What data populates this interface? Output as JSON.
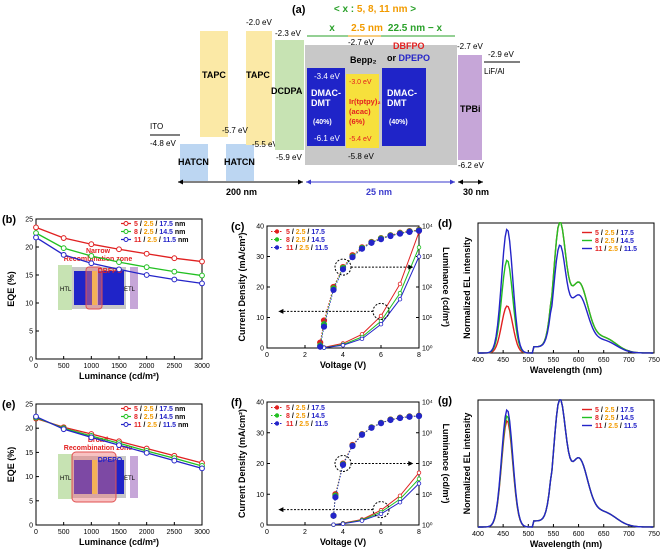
{
  "panel_a": {
    "label": "(a)",
    "thickness_note": {
      "open": "< x : ",
      "values": "5, 8, 11 nm",
      "close": " >"
    },
    "segments": {
      "x": "x",
      "mid": "2.5 nm",
      "right": "22.5 nm − x"
    },
    "layers": [
      {
        "name": "TAPC",
        "lumo": "-2.0 eV",
        "homo": "-5.7 eV",
        "color": "#fbe9a6"
      },
      {
        "name": "TAPC",
        "lumo": "",
        "homo": "-5.5 eV",
        "color": "#fbe9a6"
      },
      {
        "name": "DCDPA",
        "lumo": "-2.3 eV",
        "homo": "-5.9 eV",
        "color": "#c7e3b3"
      },
      {
        "name": "DMAC-\nDMT",
        "sub": "(40%)",
        "lumo": "-3.4 eV",
        "homo": "-6.1 eV",
        "color": "#1f24c8"
      },
      {
        "name": "Bepp₂",
        "lumo": "-2.7 eV",
        "homo": "-5.8 eV",
        "color": "#c8c8c8"
      },
      {
        "name": "Ir(tptpy)₂\n(acac)\n(6%)",
        "lumo": "-3.0 eV",
        "homo": "-5.4 eV",
        "color": "#f7e03c"
      },
      {
        "name": "DMAC-\nDMT",
        "sub": "(40%)",
        "lumo": "",
        "homo": "",
        "color": "#1f24c8"
      },
      {
        "name": "TPBi",
        "lumo": "-2.7 eV",
        "homo": "-6.2 eV",
        "color": "#c6a6d8"
      }
    ],
    "ito": {
      "name": "ITO",
      "wf": "-4.8 eV"
    },
    "hatcn": [
      "HATCN",
      "HATCN"
    ],
    "host_choice": {
      "a": "DBFPO",
      "or": "or ",
      "b": "DPEPO"
    },
    "cathode": {
      "name": "LiF/Al",
      "wf": "-2.9 eV"
    },
    "spans": {
      "left": "200 nm",
      "mid": "25 nm",
      "right": "30 nm"
    }
  },
  "legend": [
    {
      "a": "5",
      "b": "2.5",
      "c": "17.5",
      "unit": " nm"
    },
    {
      "a": "8",
      "b": "2.5",
      "c": "14.5",
      "unit": " nm"
    },
    {
      "a": "11",
      "b": "2.5",
      "c": "11.5",
      "unit": " nm"
    }
  ],
  "legend_short": [
    {
      "a": "5",
      "b": "2.5",
      "c": "17.5"
    },
    {
      "a": "8",
      "b": "2.5",
      "c": "14.5"
    },
    {
      "a": "11",
      "b": "2.5",
      "c": "11.5"
    }
  ],
  "series_colors": [
    "#e02020",
    "#22c022",
    "#2424c8"
  ],
  "insets": {
    "narrow": {
      "title": "Narrow\nRecombination zone",
      "host": "DBFPO",
      "htl": "HTL",
      "etl": "ETL"
    },
    "broad": {
      "title": "Broad\nRecombination zone",
      "host": "DPEPO",
      "htl": "HTL",
      "etl": "ETL"
    }
  },
  "chart_data": [
    {
      "id": "b",
      "label": "(b)",
      "type": "line",
      "xlabel": "Luminance (cd/m²)",
      "ylabel": "EQE (%)",
      "xlim": [
        0,
        3000
      ],
      "ylim": [
        0,
        25
      ],
      "xticks": [
        0,
        500,
        1000,
        1500,
        2000,
        2500,
        3000
      ],
      "yticks": [
        0,
        5,
        10,
        15,
        20,
        25
      ],
      "x": [
        0,
        500,
        1000,
        1500,
        2000,
        2500,
        3000
      ],
      "series": [
        {
          "name": "5 / 2.5 / 17.5 nm",
          "values": [
            23.5,
            21.6,
            20.5,
            19.6,
            18.8,
            18.0,
            17.4
          ]
        },
        {
          "name": "8 / 2.5 / 14.5 nm",
          "values": [
            22.5,
            19.8,
            18.4,
            17.3,
            16.4,
            15.6,
            14.9
          ]
        },
        {
          "name": "11 / 2.5 / 11.5 nm",
          "values": [
            21.7,
            18.6,
            17.1,
            16.0,
            15.0,
            14.2,
            13.5
          ]
        }
      ]
    },
    {
      "id": "c",
      "label": "(c)",
      "type": "line",
      "xlabel": "Voltage (V)",
      "ylabel": "Current Density (mA/cm²)",
      "y2label": "Luminance (cd/m²)",
      "xlim": [
        0,
        8
      ],
      "ylim": [
        0,
        40
      ],
      "y2lim": [
        1,
        10000
      ],
      "xticks": [
        0,
        2,
        4,
        6,
        8
      ],
      "yticks": [
        0,
        10,
        20,
        30,
        40
      ],
      "y2ticks": [
        "10⁰",
        "10¹",
        "10²",
        "10³",
        "10⁴"
      ],
      "jv": {
        "x": [
          3,
          4,
          5,
          6,
          7,
          8
        ],
        "series": [
          [
            0.2,
            1.5,
            4.5,
            10.5,
            21.0,
            38.0
          ],
          [
            0.1,
            1.1,
            3.6,
            8.8,
            18.0,
            33.0
          ],
          [
            0.1,
            0.9,
            3.0,
            7.8,
            16.0,
            30.0
          ]
        ]
      },
      "lv": {
        "x": [
          2.8,
          3.0,
          3.5,
          4.0,
          4.5,
          5.0,
          5.5,
          6.0,
          6.5,
          7.0,
          7.5,
          8.0
        ],
        "series": [
          [
            1.5,
            8,
            100,
            450,
            1100,
            2000,
            3000,
            4000,
            5000,
            6000,
            6800,
            7500
          ],
          [
            1.2,
            6,
            90,
            420,
            1000,
            1900,
            2900,
            3900,
            4900,
            5800,
            6600,
            7300
          ],
          [
            1.1,
            5,
            80,
            380,
            950,
            1800,
            2800,
            3700,
            4700,
            5600,
            6400,
            7000
          ]
        ]
      }
    },
    {
      "id": "d",
      "label": "(d)",
      "type": "line",
      "xlabel": "Wavelength (nm)",
      "ylabel": "Normalized EL intensity",
      "xlim": [
        400,
        750
      ],
      "xticks": [
        400,
        450,
        500,
        550,
        600,
        650,
        700,
        750
      ],
      "series": [
        {
          "name": "5 / 2.5 / 17.5",
          "peak1": 0.38,
          "peak2": 1.0
        },
        {
          "name": "8 / 2.5 / 14.5",
          "peak1": 0.75,
          "peak2": 1.0
        },
        {
          "name": "11 / 2.5 / 11.5",
          "peak1": 1.0,
          "peak2": 0.82
        }
      ]
    },
    {
      "id": "e",
      "label": "(e)",
      "type": "line",
      "xlabel": "Luminance (cd/m²)",
      "ylabel": "EQE (%)",
      "xlim": [
        0,
        3000
      ],
      "ylim": [
        0,
        25
      ],
      "xticks": [
        0,
        500,
        1000,
        1500,
        2000,
        2500,
        3000
      ],
      "yticks": [
        0,
        5,
        10,
        15,
        20,
        25
      ],
      "x": [
        0,
        500,
        1000,
        1500,
        2000,
        2500,
        3000
      ],
      "series": [
        {
          "name": "5 / 2.5 / 17.5 nm",
          "values": [
            22.0,
            20.2,
            18.8,
            17.3,
            15.8,
            14.3,
            12.8
          ]
        },
        {
          "name": "8 / 2.5 / 14.5 nm",
          "values": [
            22.2,
            20.0,
            18.4,
            16.9,
            15.3,
            13.8,
            12.2
          ]
        },
        {
          "name": "11 / 2.5 / 11.5 nm",
          "values": [
            22.4,
            19.8,
            18.1,
            16.5,
            14.9,
            13.3,
            11.7
          ]
        }
      ]
    },
    {
      "id": "f",
      "label": "(f)",
      "type": "line",
      "xlabel": "Voltage (V)",
      "ylabel": "Current Density (mA/cm²)",
      "y2label": "Luminance (cd/m²)",
      "xlim": [
        0,
        8
      ],
      "ylim": [
        0,
        40
      ],
      "y2lim": [
        1,
        10000
      ],
      "xticks": [
        0,
        2,
        4,
        6,
        8
      ],
      "yticks": [
        0,
        10,
        20,
        30,
        40
      ],
      "y2ticks": [
        "10⁰",
        "10¹",
        "10²",
        "10³",
        "10⁴"
      ],
      "jv": {
        "x": [
          3.5,
          4,
          5,
          6,
          7,
          8
        ],
        "series": [
          [
            0.1,
            0.6,
            1.8,
            4.8,
            9.5,
            17.0
          ],
          [
            0.1,
            0.5,
            1.6,
            4.2,
            8.4,
            15.0
          ],
          [
            0.1,
            0.4,
            1.4,
            3.6,
            7.4,
            13.5
          ]
        ]
      },
      "lv": {
        "x": [
          3.5,
          3.6,
          4.0,
          4.5,
          5.0,
          5.5,
          6.0,
          6.5,
          7.0,
          7.5,
          8.0
        ],
        "series": [
          [
            2,
            10,
            100,
            400,
            900,
            1500,
            2100,
            2700,
            3100,
            3400,
            3600
          ],
          [
            2,
            9,
            95,
            380,
            880,
            1480,
            2080,
            2650,
            3050,
            3350,
            3550
          ],
          [
            2,
            8,
            90,
            370,
            860,
            1450,
            2050,
            2600,
            3000,
            3300,
            3500
          ]
        ]
      }
    },
    {
      "id": "g",
      "label": "(g)",
      "type": "line",
      "xlabel": "Wavelength (nm)",
      "ylabel": "Normalized EL intensity",
      "xlim": [
        400,
        750
      ],
      "xticks": [
        400,
        450,
        500,
        550,
        600,
        650,
        700,
        750
      ],
      "series": [
        {
          "name": "5 / 2.5 / 17.5",
          "peak1": 0.88,
          "peak2": 1.0
        },
        {
          "name": "8 / 2.5 / 14.5",
          "peak1": 0.92,
          "peak2": 1.0
        },
        {
          "name": "11 / 2.5 / 11.5",
          "peak1": 0.97,
          "peak2": 1.0
        }
      ]
    }
  ]
}
